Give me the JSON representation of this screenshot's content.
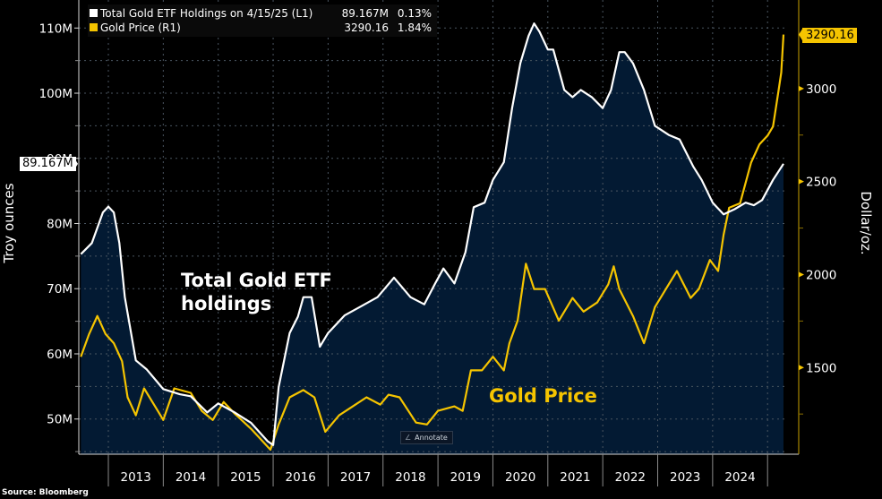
{
  "legend": [
    {
      "label": "Total Gold ETF Holdings on 4/15/25 (L1)",
      "value": "89.167M",
      "change": "0.13%",
      "color": "#ffffff"
    },
    {
      "label": "Gold Price (R1)",
      "value": "3290.16",
      "change": "1.84%",
      "color": "#f5c400"
    }
  ],
  "source": "Source: Bloomberg",
  "annotate_label": "Annotate",
  "chart_data": {
    "type": "line",
    "title": "",
    "xlabel": "",
    "x_ticks": [
      "2013",
      "2014",
      "2015",
      "2016",
      "2017",
      "2018",
      "2019",
      "2020",
      "2021",
      "2022",
      "2023",
      "2024"
    ],
    "x_range": [
      2012.45,
      2025.3
    ],
    "left_axis": {
      "label": "Troy ounces",
      "ticks": [
        "50M",
        "60M",
        "70M",
        "80M",
        "90M",
        "100M",
        "110M"
      ],
      "tick_values": [
        50,
        60,
        70,
        80,
        90,
        100,
        110
      ],
      "range": [
        44.6,
        114.3
      ],
      "last_value_tag": "89.167M"
    },
    "right_axis": {
      "label": "Dollar/oz.",
      "ticks": [
        "1500",
        "2000",
        "2500",
        "3000"
      ],
      "tick_values": [
        1500,
        2000,
        2500,
        3000
      ],
      "range": [
        1034,
        3476
      ],
      "last_value_tag": "3290.16"
    },
    "grid": true,
    "legend_position": "top-left",
    "annotations": [
      {
        "text": "Total Gold ETF\nholdings",
        "series": "etf"
      },
      {
        "text": "Gold Price",
        "series": "gold"
      }
    ],
    "series": [
      {
        "name": "Total Gold ETF Holdings (L1)",
        "axis": "left",
        "unit": "M oz",
        "color": "#ffffff",
        "fill": "#031a33",
        "x": [
          2012.5,
          2012.7,
          2012.9,
          2013.0,
          2013.1,
          2013.2,
          2013.3,
          2013.5,
          2013.7,
          2013.9,
          2014.0,
          2014.3,
          2014.5,
          2014.8,
          2015.0,
          2015.3,
          2015.6,
          2015.9,
          2016.0,
          2016.1,
          2016.3,
          2016.45,
          2016.55,
          2016.7,
          2016.85,
          2017.0,
          2017.3,
          2017.6,
          2017.9,
          2018.2,
          2018.5,
          2018.75,
          2018.95,
          2019.1,
          2019.3,
          2019.5,
          2019.65,
          2019.85,
          2020.0,
          2020.2,
          2020.35,
          2020.5,
          2020.65,
          2020.75,
          2020.85,
          2021.0,
          2021.1,
          2021.3,
          2021.45,
          2021.6,
          2021.8,
          2022.0,
          2022.15,
          2022.3,
          2022.4,
          2022.55,
          2022.75,
          2022.95,
          2023.2,
          2023.4,
          2023.65,
          2023.8,
          2024.0,
          2024.2,
          2024.4,
          2024.6,
          2024.75,
          2024.9,
          2025.1,
          2025.29
        ],
        "values": [
          75.3,
          77.0,
          81.7,
          82.6,
          81.7,
          77.0,
          68.7,
          59.0,
          57.6,
          55.6,
          54.6,
          53.8,
          53.5,
          51.0,
          52.4,
          51.0,
          49.4,
          46.6,
          46.0,
          54.9,
          63.2,
          65.7,
          68.7,
          68.7,
          61.1,
          63.2,
          65.9,
          67.3,
          68.7,
          71.7,
          68.7,
          67.6,
          70.8,
          73.1,
          70.8,
          75.6,
          82.5,
          83.2,
          86.7,
          89.4,
          97.7,
          104.6,
          108.8,
          110.7,
          109.4,
          106.7,
          106.7,
          100.5,
          99.4,
          100.5,
          99.4,
          97.7,
          100.5,
          106.3,
          106.3,
          104.6,
          100.5,
          95.0,
          93.6,
          92.9,
          88.7,
          86.7,
          83.2,
          81.4,
          82.2,
          83.2,
          82.8,
          83.6,
          86.7,
          89.167
        ]
      },
      {
        "name": "Gold Price (R1)",
        "axis": "right",
        "unit": "USD/oz",
        "color": "#f5c400",
        "x": [
          2012.5,
          2012.65,
          2012.8,
          2012.95,
          2013.1,
          2013.25,
          2013.35,
          2013.5,
          2013.65,
          2013.9,
          2014.0,
          2014.2,
          2014.5,
          2014.7,
          2014.9,
          2015.1,
          2015.3,
          2015.6,
          2015.95,
          2016.1,
          2016.3,
          2016.55,
          2016.75,
          2016.95,
          2017.2,
          2017.45,
          2017.7,
          2017.95,
          2018.1,
          2018.3,
          2018.6,
          2018.8,
          2019.0,
          2019.3,
          2019.45,
          2019.6,
          2019.8,
          2020.0,
          2020.2,
          2020.3,
          2020.45,
          2020.6,
          2020.75,
          2020.95,
          2021.2,
          2021.45,
          2021.65,
          2021.9,
          2022.1,
          2022.2,
          2022.3,
          2022.55,
          2022.75,
          2022.95,
          2023.2,
          2023.35,
          2023.6,
          2023.75,
          2023.95,
          2024.1,
          2024.2,
          2024.3,
          2024.5,
          2024.7,
          2024.85,
          2025.0,
          2025.1,
          2025.2,
          2025.25,
          2025.29
        ],
        "values": [
          1558,
          1680,
          1777,
          1680,
          1631,
          1534,
          1340,
          1243,
          1388,
          1267,
          1218,
          1388,
          1364,
          1267,
          1218,
          1315,
          1252,
          1170,
          1058,
          1194,
          1340,
          1379,
          1340,
          1155,
          1243,
          1291,
          1340,
          1301,
          1354,
          1340,
          1204,
          1194,
          1267,
          1291,
          1267,
          1485,
          1485,
          1558,
          1485,
          1631,
          1752,
          2058,
          1922,
          1922,
          1752,
          1874,
          1801,
          1850,
          1947,
          2044,
          1922,
          1777,
          1631,
          1825,
          1947,
          2019,
          1874,
          1922,
          2078,
          2019,
          2214,
          2359,
          2383,
          2602,
          2699,
          2747,
          2796,
          2990,
          3087,
          3290.16
        ]
      }
    ]
  }
}
